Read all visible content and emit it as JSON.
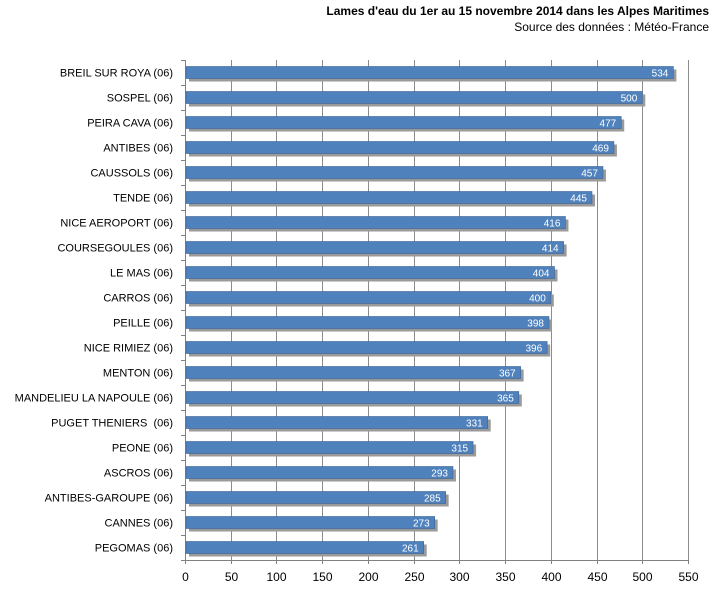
{
  "chart_data": {
    "type": "bar",
    "orientation": "horizontal",
    "title": "Lames d'eau du 1er au 15 novembre 2014 dans les Alpes Maritimes",
    "subtitle": "Source des données : Météo-France",
    "xlabel": "",
    "ylabel": "",
    "xlim": [
      0,
      550
    ],
    "xticks": [
      0,
      50,
      100,
      150,
      200,
      250,
      300,
      350,
      400,
      450,
      500,
      550
    ],
    "grid": true,
    "legend": "none",
    "categories": [
      "BREIL SUR ROYA (06)",
      "SOSPEL (06)",
      "PEIRA CAVA (06)",
      "ANTIBES (06)",
      "CAUSSOLS (06)",
      "TENDE (06)",
      "NICE AEROPORT (06)",
      "COURSEGOULES (06)",
      "LE MAS (06)",
      "CARROS (06)",
      "PEILLE (06)",
      "NICE RIMIEZ (06)",
      "MENTON (06)",
      "MANDELIEU LA NAPOULE (06)",
      "PUGET THENIERS  (06)",
      "PEONE (06)",
      "ASCROS (06)",
      "ANTIBES-GAROUPE (06)",
      "CANNES (06)",
      "PEGOMAS (06)"
    ],
    "values": [
      534,
      500,
      477,
      469,
      457,
      445,
      416,
      414,
      404,
      400,
      398,
      396,
      367,
      365,
      331,
      315,
      293,
      285,
      273,
      261
    ],
    "colors": {
      "bar": "#4F81BD",
      "bar_border": "#3A6496",
      "shadow": "#9A9A9A",
      "grid": "#8C8C8C",
      "axis": "#808080",
      "label_text": "#000000",
      "value_text": "#FFFFFF"
    }
  }
}
